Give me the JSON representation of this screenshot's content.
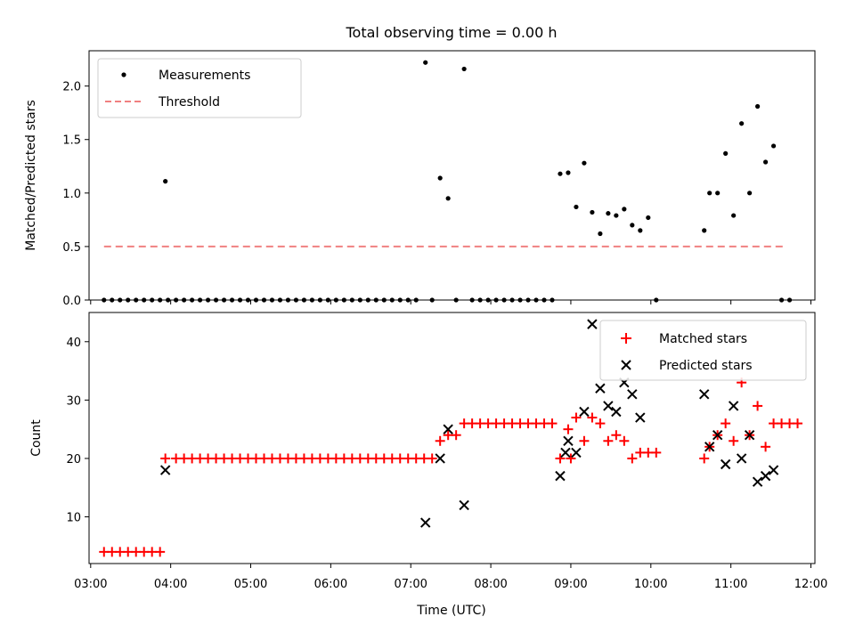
{
  "chart_data": [
    {
      "type": "scatter",
      "title": "Total observing time = 0.00 h",
      "xlabel": "",
      "ylabel": "Matched/Predicted stars",
      "ylim": [
        0,
        2.33
      ],
      "yticks": [
        "0.0",
        "0.5",
        "1.0",
        "1.5",
        "2.0"
      ],
      "xlim_hours": [
        2.98,
        12.05
      ],
      "legend_position": "upper-left",
      "series": [
        {
          "name": "Measurements",
          "color": "#000000",
          "marker": "dot",
          "x": [
            "03:10",
            "03:16",
            "03:22",
            "03:28",
            "03:34",
            "03:40",
            "03:46",
            "03:52",
            "03:58",
            "04:04",
            "04:10",
            "04:16",
            "04:22",
            "04:28",
            "04:34",
            "04:40",
            "04:46",
            "04:52",
            "04:58",
            "05:04",
            "05:10",
            "05:16",
            "05:22",
            "05:28",
            "05:34",
            "05:40",
            "05:46",
            "05:52",
            "05:58",
            "06:04",
            "06:10",
            "06:16",
            "06:22",
            "06:28",
            "06:34",
            "06:40",
            "06:46",
            "06:52",
            "06:58",
            "07:04",
            "03:56",
            "07:11",
            "07:16",
            "07:22",
            "07:28",
            "07:34",
            "07:40",
            "07:46",
            "07:52",
            "07:58",
            "08:04",
            "08:10",
            "08:16",
            "08:22",
            "08:28",
            "08:34",
            "08:40",
            "08:46",
            "08:52",
            "08:58",
            "09:04",
            "09:10",
            "09:16",
            "09:22",
            "09:28",
            "09:34",
            "09:40",
            "09:46",
            "09:52",
            "09:58",
            "10:04",
            "10:40",
            "10:44",
            "10:50",
            "10:56",
            "11:02",
            "11:08",
            "11:14",
            "11:20",
            "11:26",
            "11:32",
            "11:38",
            "11:44"
          ],
          "y": [
            0,
            0,
            0,
            0,
            0,
            0,
            0,
            0,
            0,
            0,
            0,
            0,
            0,
            0,
            0,
            0,
            0,
            0,
            0,
            0,
            0,
            0,
            0,
            0,
            0,
            0,
            0,
            0,
            0,
            0,
            0,
            0,
            0,
            0,
            0,
            0,
            0,
            0,
            0,
            0,
            1.11,
            2.22,
            0,
            1.14,
            0.95,
            0,
            2.16,
            0,
            0,
            0,
            0,
            0,
            0,
            0,
            0,
            0,
            0,
            0,
            1.18,
            1.19,
            0.87,
            1.28,
            0.82,
            0.62,
            0.81,
            0.79,
            0.85,
            0.7,
            0.65,
            0.77,
            0,
            0.65,
            1.0,
            1.0,
            1.37,
            0.79,
            1.65,
            1.0,
            1.81,
            1.29,
            1.44,
            0,
            0
          ]
        },
        {
          "name": "Threshold",
          "color": "#f08080",
          "marker": "dashed-line",
          "x": [
            "03:10",
            "11:40"
          ],
          "y": [
            0.5,
            0.5
          ]
        }
      ]
    },
    {
      "type": "scatter",
      "title": "",
      "xlabel": "Time (UTC)",
      "ylabel": "Count",
      "ylim": [
        2,
        45
      ],
      "yticks": [
        "10",
        "20",
        "30",
        "40"
      ],
      "xticks": [
        "03:00",
        "04:00",
        "05:00",
        "06:00",
        "07:00",
        "08:00",
        "09:00",
        "10:00",
        "11:00",
        "12:00"
      ],
      "xlim_hours": [
        2.98,
        12.05
      ],
      "legend_position": "upper-right",
      "series": [
        {
          "name": "Matched stars",
          "color": "#ff0000",
          "marker": "plus",
          "x": [
            "03:10",
            "03:16",
            "03:22",
            "03:28",
            "03:34",
            "03:40",
            "03:46",
            "03:52",
            "03:56",
            "04:04",
            "04:10",
            "04:16",
            "04:22",
            "04:28",
            "04:34",
            "04:40",
            "04:46",
            "04:52",
            "04:58",
            "05:04",
            "05:10",
            "05:16",
            "05:22",
            "05:28",
            "05:34",
            "05:40",
            "05:46",
            "05:52",
            "05:58",
            "06:04",
            "06:10",
            "06:16",
            "06:22",
            "06:28",
            "06:34",
            "06:40",
            "06:46",
            "06:52",
            "06:58",
            "07:04",
            "07:10",
            "07:16",
            "07:22",
            "07:28",
            "07:34",
            "07:40",
            "07:46",
            "07:52",
            "07:58",
            "08:04",
            "08:10",
            "08:16",
            "08:22",
            "08:28",
            "08:34",
            "08:40",
            "08:46",
            "08:52",
            "08:58",
            "09:00",
            "09:04",
            "09:10",
            "09:16",
            "09:22",
            "09:28",
            "09:34",
            "09:40",
            "09:46",
            "09:52",
            "09:58",
            "10:04",
            "10:40",
            "10:44",
            "10:50",
            "10:56",
            "11:02",
            "11:08",
            "11:14",
            "11:20",
            "11:26",
            "11:32",
            "11:38",
            "11:44",
            "11:50"
          ],
          "y": [
            4,
            4,
            4,
            4,
            4,
            4,
            4,
            4,
            20,
            20,
            20,
            20,
            20,
            20,
            20,
            20,
            20,
            20,
            20,
            20,
            20,
            20,
            20,
            20,
            20,
            20,
            20,
            20,
            20,
            20,
            20,
            20,
            20,
            20,
            20,
            20,
            20,
            20,
            20,
            20,
            20,
            20,
            23,
            24,
            24,
            26,
            26,
            26,
            26,
            26,
            26,
            26,
            26,
            26,
            26,
            26,
            26,
            20,
            25,
            20,
            27,
            23,
            27,
            26,
            23,
            24,
            23,
            20,
            21,
            21,
            21,
            20,
            22,
            24,
            26,
            23,
            33,
            24,
            29,
            22,
            26,
            26,
            26,
            26
          ]
        },
        {
          "name": "Predicted stars",
          "color": "#000000",
          "marker": "x",
          "x": [
            "03:56",
            "07:11",
            "07:22",
            "07:28",
            "07:40",
            "08:52",
            "08:56",
            "08:58",
            "09:04",
            "09:10",
            "09:16",
            "09:22",
            "09:28",
            "09:34",
            "09:40",
            "09:46",
            "09:52",
            "10:40",
            "10:44",
            "10:50",
            "10:56",
            "11:02",
            "11:08",
            "11:14",
            "11:20",
            "11:26",
            "11:32"
          ],
          "y": [
            18,
            9,
            20,
            25,
            12,
            17,
            21,
            23,
            21,
            28,
            43,
            32,
            29,
            28,
            33,
            31,
            27,
            31,
            22,
            24,
            19,
            29,
            20,
            24,
            16,
            17,
            18
          ]
        }
      ]
    }
  ]
}
